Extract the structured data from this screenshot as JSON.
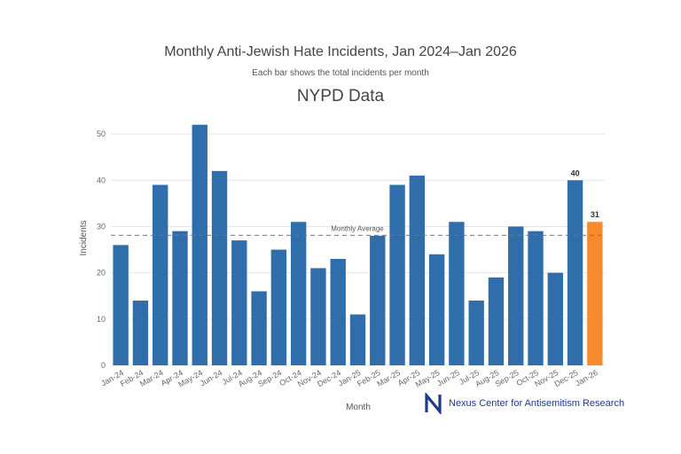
{
  "title": "Monthly Anti-Jewish Hate Incidents, Jan 2024–Jan 2026",
  "subtitle": "Each bar shows the total incidents per month",
  "brand": {
    "logo_letter": "N",
    "name": "Nexus Center for Antisemitism Research"
  },
  "colors": {
    "bar": "#2f6eab",
    "highlight": "#f78a2f",
    "grid": "#e6e6e6",
    "average_line": "#777777"
  },
  "chart_data": {
    "type": "bar",
    "title": "NYPD Data",
    "xlabel": "Month",
    "ylabel": "Incidents",
    "ylim": [
      0,
      55
    ],
    "yticks": [
      0,
      10,
      20,
      30,
      40,
      50
    ],
    "grid": true,
    "categories": [
      "Jan-24",
      "Feb-24",
      "Mar-24",
      "Apr-24",
      "May-24",
      "Jun-24",
      "Jul-24",
      "Aug-24",
      "Sep-24",
      "Oct-24",
      "Nov-24",
      "Dec-24",
      "Jan-25",
      "Feb-25",
      "Mar-25",
      "Apr-25",
      "May-25",
      "Jun-25",
      "Jul-25",
      "Aug-25",
      "Sep-25",
      "Oct-25",
      "Nov-25",
      "Dec-25",
      "Jan-26"
    ],
    "values": [
      26,
      14,
      39,
      29,
      52,
      42,
      27,
      16,
      25,
      31,
      21,
      23,
      11,
      28,
      39,
      41,
      24,
      31,
      14,
      19,
      30,
      29,
      20,
      40,
      31
    ],
    "highlight_index": 24,
    "data_labels": [
      {
        "index": 23,
        "text": "40"
      },
      {
        "index": 24,
        "text": "31"
      }
    ],
    "reference_line": {
      "label": "Monthly Average",
      "value": 28.1
    }
  }
}
